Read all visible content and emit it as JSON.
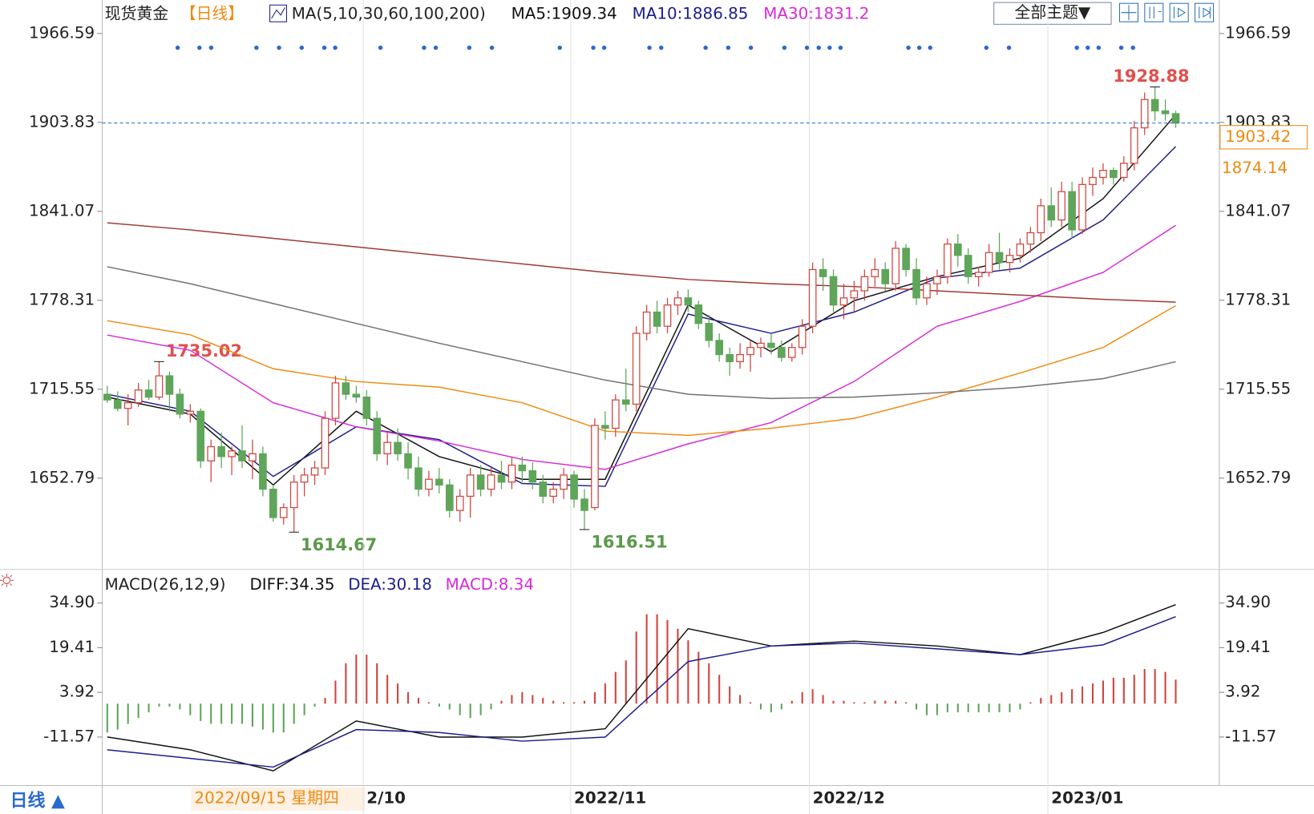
{
  "chart_data": {
    "type": "candlestick",
    "title": "现货黄金",
    "period": "【日线】",
    "ma_legend": "MA(5,10,30,60,100,200)",
    "theme_button": "全部主题▼",
    "period_button": "日线 ▲",
    "cursor_date": "2022/09/15 星期四",
    "up_color": "#d0453f",
    "down_color": "#5fa55a",
    "ylim": [
      1588.35,
      1990.23
    ],
    "yticks": [
      1652.79,
      1715.55,
      1778.31,
      1841.07,
      1903.83,
      1966.59
    ],
    "level": 1874.14,
    "categories": [
      null,
      null,
      null,
      null,
      null,
      null,
      null,
      null,
      null,
      null,
      null,
      null,
      null,
      null,
      null,
      null,
      null,
      null,
      null,
      null,
      null,
      null,
      null,
      null,
      null,
      "2/10",
      null,
      null,
      null,
      null,
      null,
      null,
      null,
      null,
      null,
      null,
      null,
      null,
      null,
      null,
      null,
      null,
      null,
      null,
      null,
      "2022/11",
      null,
      null,
      null,
      null,
      null,
      null,
      null,
      null,
      null,
      null,
      null,
      null,
      null,
      null,
      null,
      null,
      null,
      null,
      null,
      null,
      null,
      null,
      "2022/12",
      null,
      null,
      null,
      null,
      null,
      null,
      null,
      null,
      null,
      null,
      null,
      null,
      null,
      null,
      null,
      null,
      null,
      null,
      null,
      null,
      null,
      null,
      "2023/01",
      null,
      null,
      null,
      null,
      null,
      null,
      null,
      null,
      null,
      null,
      null,
      null
    ],
    "candles": [
      [
        1712,
        1718,
        1706,
        1708
      ],
      [
        1708,
        1714,
        1700,
        1702
      ],
      [
        1702,
        1712,
        1690,
        1706
      ],
      [
        1706,
        1720,
        1703,
        1715
      ],
      [
        1715,
        1722,
        1708,
        1710
      ],
      [
        1710,
        1735.02,
        1708,
        1725
      ],
      [
        1725,
        1728,
        1700,
        1712
      ],
      [
        1712,
        1716,
        1695,
        1698
      ],
      [
        1698,
        1705,
        1692,
        1700
      ],
      [
        1700,
        1702,
        1660,
        1665
      ],
      [
        1665,
        1680,
        1650,
        1675
      ],
      [
        1675,
        1685,
        1660,
        1668
      ],
      [
        1668,
        1675,
        1655,
        1672
      ],
      [
        1672,
        1690,
        1660,
        1665
      ],
      [
        1665,
        1680,
        1652,
        1670
      ],
      [
        1670,
        1675,
        1640,
        1645
      ],
      [
        1645,
        1648,
        1622,
        1625
      ],
      [
        1625,
        1635,
        1620,
        1632
      ],
      [
        1632,
        1655,
        1614.67,
        1650
      ],
      [
        1650,
        1660,
        1640,
        1655
      ],
      [
        1655,
        1665,
        1648,
        1660
      ],
      [
        1660,
        1700,
        1655,
        1695
      ],
      [
        1695,
        1725,
        1690,
        1720
      ],
      [
        1720,
        1725,
        1708,
        1712
      ],
      [
        1712,
        1718,
        1706,
        1710
      ],
      [
        1710,
        1715,
        1690,
        1695
      ],
      [
        1695,
        1700,
        1665,
        1670
      ],
      [
        1670,
        1685,
        1662,
        1678
      ],
      [
        1678,
        1688,
        1665,
        1670
      ],
      [
        1670,
        1678,
        1652,
        1660
      ],
      [
        1660,
        1668,
        1640,
        1645
      ],
      [
        1645,
        1658,
        1640,
        1652
      ],
      [
        1652,
        1660,
        1642,
        1648
      ],
      [
        1648,
        1652,
        1625,
        1630
      ],
      [
        1630,
        1645,
        1622,
        1640
      ],
      [
        1640,
        1660,
        1625,
        1655
      ],
      [
        1655,
        1662,
        1640,
        1645
      ],
      [
        1645,
        1660,
        1640,
        1655
      ],
      [
        1655,
        1665,
        1645,
        1650
      ],
      [
        1650,
        1668,
        1645,
        1662
      ],
      [
        1662,
        1668,
        1650,
        1658
      ],
      [
        1658,
        1664,
        1645,
        1650
      ],
      [
        1650,
        1655,
        1635,
        1640
      ],
      [
        1640,
        1650,
        1635,
        1645
      ],
      [
        1645,
        1660,
        1638,
        1655
      ],
      [
        1655,
        1658,
        1632,
        1638
      ],
      [
        1638,
        1645,
        1616.51,
        1630
      ],
      [
        1632,
        1695,
        1630,
        1690
      ],
      [
        1690,
        1700,
        1680,
        1688
      ],
      [
        1688,
        1712,
        1682,
        1708
      ],
      [
        1708,
        1730,
        1700,
        1705
      ],
      [
        1705,
        1760,
        1700,
        1755
      ],
      [
        1755,
        1775,
        1750,
        1770
      ],
      [
        1770,
        1778,
        1755,
        1760
      ],
      [
        1760,
        1780,
        1755,
        1775
      ],
      [
        1775,
        1785,
        1768,
        1780
      ],
      [
        1780,
        1786,
        1770,
        1775
      ],
      [
        1775,
        1778,
        1758,
        1762
      ],
      [
        1762,
        1768,
        1745,
        1750
      ],
      [
        1750,
        1755,
        1735,
        1740
      ],
      [
        1740,
        1745,
        1725,
        1735
      ],
      [
        1735,
        1748,
        1730,
        1740
      ],
      [
        1740,
        1750,
        1728,
        1745
      ],
      [
        1745,
        1752,
        1738,
        1748
      ],
      [
        1748,
        1755,
        1740,
        1745
      ],
      [
        1745,
        1750,
        1735,
        1738
      ],
      [
        1738,
        1748,
        1735,
        1745
      ],
      [
        1745,
        1765,
        1740,
        1760
      ],
      [
        1760,
        1805,
        1755,
        1800
      ],
      [
        1800,
        1808,
        1785,
        1795
      ],
      [
        1795,
        1800,
        1770,
        1775
      ],
      [
        1775,
        1790,
        1765,
        1780
      ],
      [
        1780,
        1792,
        1770,
        1785
      ],
      [
        1785,
        1800,
        1778,
        1795
      ],
      [
        1795,
        1808,
        1788,
        1800
      ],
      [
        1800,
        1805,
        1785,
        1790
      ],
      [
        1790,
        1820,
        1785,
        1815
      ],
      [
        1815,
        1818,
        1795,
        1800
      ],
      [
        1800,
        1808,
        1775,
        1780
      ],
      [
        1780,
        1795,
        1775,
        1790
      ],
      [
        1790,
        1800,
        1782,
        1795
      ],
      [
        1795,
        1822,
        1790,
        1818
      ],
      [
        1818,
        1825,
        1802,
        1810
      ],
      [
        1810,
        1815,
        1790,
        1795
      ],
      [
        1795,
        1802,
        1788,
        1798
      ],
      [
        1798,
        1818,
        1795,
        1812
      ],
      [
        1812,
        1826,
        1800,
        1805
      ],
      [
        1805,
        1815,
        1798,
        1810
      ],
      [
        1810,
        1822,
        1805,
        1818
      ],
      [
        1818,
        1830,
        1812,
        1826
      ],
      [
        1826,
        1850,
        1820,
        1845
      ],
      [
        1845,
        1858,
        1830,
        1835
      ],
      [
        1835,
        1862,
        1830,
        1855
      ],
      [
        1855,
        1862,
        1822,
        1828
      ],
      [
        1828,
        1865,
        1825,
        1860
      ],
      [
        1860,
        1872,
        1852,
        1865
      ],
      [
        1865,
        1875,
        1860,
        1870
      ],
      [
        1870,
        1872,
        1860,
        1865
      ],
      [
        1865,
        1880,
        1862,
        1875
      ],
      [
        1875,
        1905,
        1870,
        1900
      ],
      [
        1900,
        1925,
        1895,
        1920
      ],
      [
        1920,
        1928.88,
        1905,
        1912
      ],
      [
        1912,
        1920,
        1905,
        1910
      ],
      [
        1910,
        1912,
        1900,
        1903.42
      ]
    ],
    "line_x": [
      0,
      8,
      16,
      24,
      32,
      40,
      48,
      56,
      64,
      72,
      80,
      88,
      96,
      103
    ],
    "ma": [
      {
        "label": "MA5:1909.34",
        "color": "#111111",
        "values": [
          1710,
          1698,
          1648,
          1700,
          1668,
          1652,
          1652,
          1775,
          1742,
          1778,
          1795,
          1808,
          1850,
          1909.34
        ]
      },
      {
        "label": "MA10:1886.85",
        "color": "#1c1c8c",
        "values": [
          1712,
          1700,
          1654,
          1689,
          1680,
          1649,
          1647,
          1768.6,
          1755,
          1770,
          1794,
          1801,
          1835,
          1886.85
        ]
      },
      {
        "label": "MA30:1831.2",
        "color": "#d62ad6",
        "values": [
          1753.8,
          1743,
          1706,
          1689,
          1679,
          1666,
          1659,
          1677,
          1692,
          1721,
          1760,
          1777.5,
          1798,
          1831.2
        ]
      },
      {
        "color": "#ee8a10",
        "values": [
          1763.9,
          1754,
          1730,
          1721,
          1717,
          1706,
          1686,
          1683,
          1688,
          1695,
          1710,
          1727,
          1745,
          1774.5
        ]
      },
      {
        "color": "#707070",
        "values": [
          1802,
          1790,
          1776,
          1762,
          1748,
          1735,
          1722,
          1712,
          1709,
          1710,
          1713,
          1717,
          1723,
          1735
        ]
      },
      {
        "color": "#a03838",
        "values": [
          1833,
          1828,
          1822,
          1816,
          1810,
          1804,
          1798,
          1793,
          1790,
          1788,
          1785,
          1782,
          1779,
          1777
        ]
      }
    ],
    "macd": {
      "title": "MACD(26,12,9)",
      "ylim": [
        -28.4,
        44.8
      ],
      "yticks": [
        {
          "value": 34.9,
          "label": "34.90"
        },
        19.41,
        3.92,
        -11.57
      ],
      "hist_label": "MACD:8.34",
      "hist_color": "#d62ad6",
      "histogram": [
        -10,
        -9,
        -7,
        -5,
        -3,
        -1,
        -1,
        -2,
        -4,
        -6,
        -7,
        -7,
        -7,
        -7,
        -8,
        -9,
        -10,
        -10,
        -7,
        -4,
        -1,
        2,
        8,
        14,
        17,
        17,
        14,
        10,
        7,
        4,
        2,
        0.5,
        -1,
        -2,
        -4,
        -5,
        -4,
        -2,
        1,
        3,
        4,
        3,
        2,
        1,
        0.5,
        0.5,
        1,
        4,
        7,
        11,
        15,
        25,
        31,
        31,
        29,
        26,
        22,
        18,
        14,
        10,
        6,
        3,
        0.5,
        -2,
        -3,
        -2,
        1,
        4,
        5,
        3,
        1,
        1,
        0.5,
        0.5,
        1,
        1,
        1,
        0.5,
        -2,
        -4,
        -4,
        -3,
        -3,
        -3,
        -3,
        -3,
        -3,
        -3,
        -2,
        0.5,
        2,
        3,
        4,
        5,
        6,
        7,
        8,
        9,
        9,
        10,
        12,
        12,
        11,
        8.34
      ],
      "lines": [
        {
          "label": "DIFF:34.35",
          "color": "#111111",
          "values": [
            -11.57,
            -16,
            -23.3,
            -6,
            -11.6,
            -11.6,
            -8.7,
            26,
            20,
            21.7,
            20,
            17,
            24.7,
            34.35
          ]
        },
        {
          "label": "DEA:30.18",
          "color": "#1c1c8c",
          "values": [
            -16,
            -19,
            -22,
            -9,
            -10,
            -13,
            -11.6,
            14.6,
            20,
            21,
            19,
            17,
            20.4,
            30.18
          ]
        }
      ]
    }
  }
}
